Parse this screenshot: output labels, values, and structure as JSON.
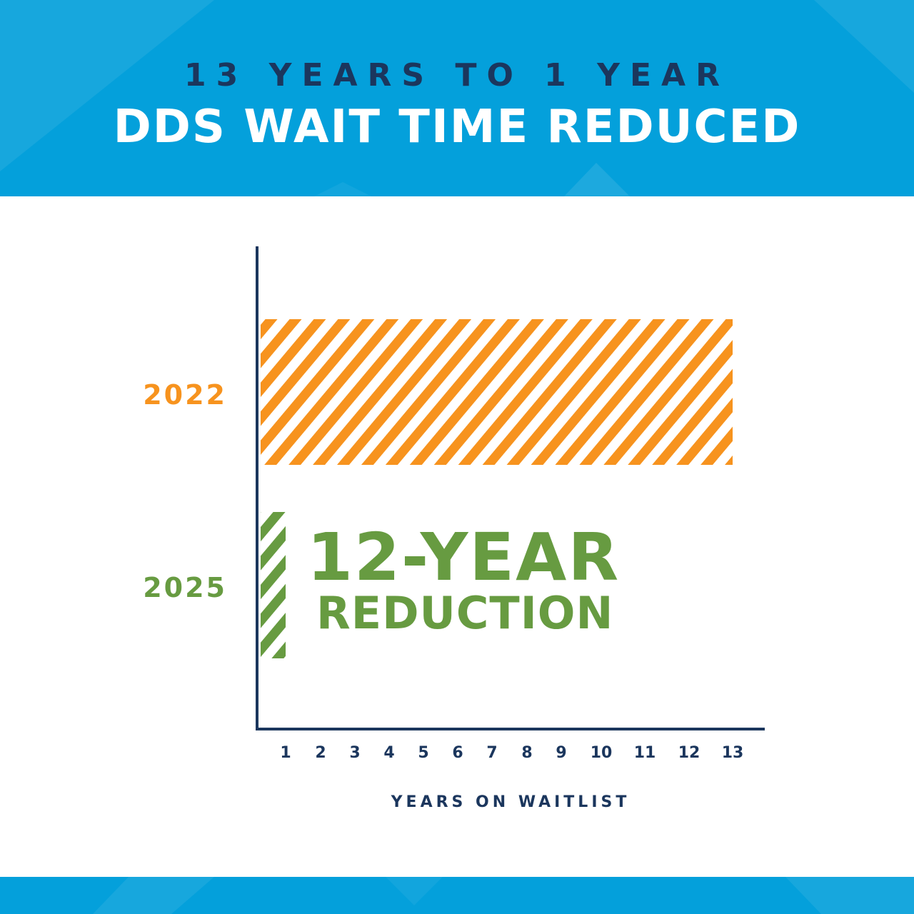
{
  "header": {
    "kicker": "13 YEARS TO 1 YEAR",
    "title": "DDS WAIT TIME REDUCED"
  },
  "colors": {
    "banner": "#04a0db",
    "navy": "#1b365d",
    "orange": "#f7931e",
    "green": "#679b41"
  },
  "chart_data": {
    "type": "bar",
    "orientation": "horizontal",
    "fill": "diagonal-stripes",
    "categories": [
      "2022",
      "2025"
    ],
    "values": [
      13,
      1
    ],
    "category_colors": [
      "#f7931e",
      "#679b41"
    ],
    "xlabel": "YEARS ON WAITLIST",
    "ylabel": "",
    "xticks": [
      "1",
      "2",
      "3",
      "4",
      "5",
      "6",
      "7",
      "8",
      "9",
      "10",
      "11",
      "12",
      "13"
    ],
    "xlim": [
      0,
      13
    ],
    "grid": false,
    "annotation": {
      "line1": "12-YEAR",
      "line2": "REDUCTION"
    }
  }
}
